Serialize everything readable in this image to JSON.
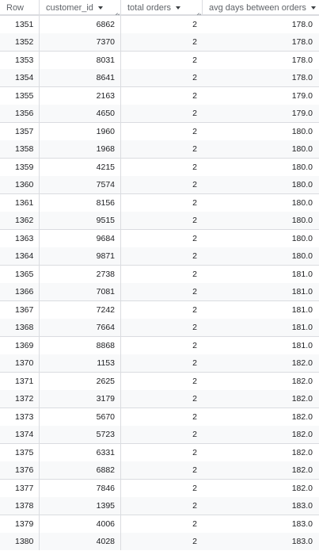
{
  "columns": {
    "row": "Row",
    "customer_id": "customer_id",
    "total_orders": "total orders",
    "avg_days": "avg days between orders"
  },
  "rows": [
    {
      "row": "1351",
      "customer_id": "6862",
      "total_orders": "2",
      "avg_days": "178.0"
    },
    {
      "row": "1352",
      "customer_id": "7370",
      "total_orders": "2",
      "avg_days": "178.0"
    },
    {
      "row": "1353",
      "customer_id": "8031",
      "total_orders": "2",
      "avg_days": "178.0"
    },
    {
      "row": "1354",
      "customer_id": "8641",
      "total_orders": "2",
      "avg_days": "178.0"
    },
    {
      "row": "1355",
      "customer_id": "2163",
      "total_orders": "2",
      "avg_days": "179.0"
    },
    {
      "row": "1356",
      "customer_id": "4650",
      "total_orders": "2",
      "avg_days": "179.0"
    },
    {
      "row": "1357",
      "customer_id": "1960",
      "total_orders": "2",
      "avg_days": "180.0"
    },
    {
      "row": "1358",
      "customer_id": "1968",
      "total_orders": "2",
      "avg_days": "180.0"
    },
    {
      "row": "1359",
      "customer_id": "4215",
      "total_orders": "2",
      "avg_days": "180.0"
    },
    {
      "row": "1360",
      "customer_id": "7574",
      "total_orders": "2",
      "avg_days": "180.0"
    },
    {
      "row": "1361",
      "customer_id": "8156",
      "total_orders": "2",
      "avg_days": "180.0"
    },
    {
      "row": "1362",
      "customer_id": "9515",
      "total_orders": "2",
      "avg_days": "180.0"
    },
    {
      "row": "1363",
      "customer_id": "9684",
      "total_orders": "2",
      "avg_days": "180.0"
    },
    {
      "row": "1364",
      "customer_id": "9871",
      "total_orders": "2",
      "avg_days": "180.0"
    },
    {
      "row": "1365",
      "customer_id": "2738",
      "total_orders": "2",
      "avg_days": "181.0"
    },
    {
      "row": "1366",
      "customer_id": "7081",
      "total_orders": "2",
      "avg_days": "181.0"
    },
    {
      "row": "1367",
      "customer_id": "7242",
      "total_orders": "2",
      "avg_days": "181.0"
    },
    {
      "row": "1368",
      "customer_id": "7664",
      "total_orders": "2",
      "avg_days": "181.0"
    },
    {
      "row": "1369",
      "customer_id": "8868",
      "total_orders": "2",
      "avg_days": "181.0"
    },
    {
      "row": "1370",
      "customer_id": "1153",
      "total_orders": "2",
      "avg_days": "182.0"
    },
    {
      "row": "1371",
      "customer_id": "2625",
      "total_orders": "2",
      "avg_days": "182.0"
    },
    {
      "row": "1372",
      "customer_id": "3179",
      "total_orders": "2",
      "avg_days": "182.0"
    },
    {
      "row": "1373",
      "customer_id": "5670",
      "total_orders": "2",
      "avg_days": "182.0"
    },
    {
      "row": "1374",
      "customer_id": "5723",
      "total_orders": "2",
      "avg_days": "182.0"
    },
    {
      "row": "1375",
      "customer_id": "6331",
      "total_orders": "2",
      "avg_days": "182.0"
    },
    {
      "row": "1376",
      "customer_id": "6882",
      "total_orders": "2",
      "avg_days": "182.0"
    },
    {
      "row": "1377",
      "customer_id": "7846",
      "total_orders": "2",
      "avg_days": "182.0"
    },
    {
      "row": "1378",
      "customer_id": "1395",
      "total_orders": "2",
      "avg_days": "183.0"
    },
    {
      "row": "1379",
      "customer_id": "4006",
      "total_orders": "2",
      "avg_days": "183.0"
    },
    {
      "row": "1380",
      "customer_id": "4028",
      "total_orders": "2",
      "avg_days": "183.0"
    }
  ]
}
